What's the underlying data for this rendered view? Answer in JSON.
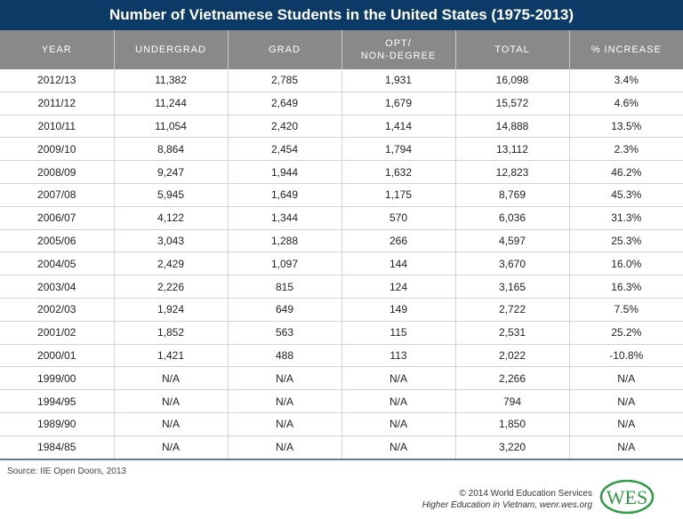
{
  "title": "Number of Vietnamese Students in the United States (1975-2013)",
  "chart_data": {
    "type": "table",
    "title": "Number of Vietnamese Students in the United States (1975-2013)",
    "columns": [
      "YEAR",
      "UNDERGRAD",
      "GRAD",
      "OPT/\nNON-DEGREE",
      "TOTAL",
      "% INCREASE"
    ],
    "rows": [
      [
        "2012/13",
        "11,382",
        "2,785",
        "1,931",
        "16,098",
        "3.4%"
      ],
      [
        "2011/12",
        "11,244",
        "2,649",
        "1,679",
        "15,572",
        "4.6%"
      ],
      [
        "2010/11",
        "11,054",
        "2,420",
        "1,414",
        "14,888",
        "13.5%"
      ],
      [
        "2009/10",
        "8,864",
        "2,454",
        "1,794",
        "13,112",
        "2.3%"
      ],
      [
        "2008/09",
        "9,247",
        "1,944",
        "1,632",
        "12,823",
        "46.2%"
      ],
      [
        "2007/08",
        "5,945",
        "1,649",
        "1,175",
        "8,769",
        "45.3%"
      ],
      [
        "2006/07",
        "4,122",
        "1,344",
        "570",
        "6,036",
        "31.3%"
      ],
      [
        "2005/06",
        "3,043",
        "1,288",
        "266",
        "4,597",
        "25.3%"
      ],
      [
        "2004/05",
        "2,429",
        "1,097",
        "144",
        "3,670",
        "16.0%"
      ],
      [
        "2003/04",
        "2,226",
        "815",
        "124",
        "3,165",
        "16.3%"
      ],
      [
        "2002/03",
        "1,924",
        "649",
        "149",
        "2,722",
        "7.5%"
      ],
      [
        "2001/02",
        "1,852",
        "563",
        "115",
        "2,531",
        "25.2%"
      ],
      [
        "2000/01",
        "1,421",
        "488",
        "113",
        "2,022",
        "-10.8%"
      ],
      [
        "1999/00",
        "N/A",
        "N/A",
        "N/A",
        "2,266",
        "N/A"
      ],
      [
        "1994/95",
        "N/A",
        "N/A",
        "N/A",
        "794",
        "N/A"
      ],
      [
        "1989/90",
        "N/A",
        "N/A",
        "N/A",
        "1,850",
        "N/A"
      ],
      [
        "1984/85",
        "N/A",
        "N/A",
        "N/A",
        "3,220",
        "N/A"
      ]
    ]
  },
  "footer": {
    "source": "Source: IIE Open Doors, 2013",
    "copyright": "© 2014 World Education Services",
    "publication": "Higher Education in Vietnam, wenr.wes.org",
    "logo_text": "WES"
  },
  "colors": {
    "title_bg": "#0b3a66",
    "header_bg": "#898989",
    "logo_green": "#2e9b45"
  }
}
